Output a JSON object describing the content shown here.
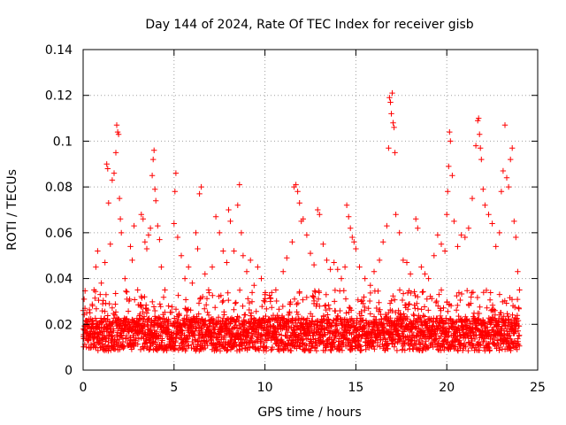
{
  "chart_data": {
    "type": "scatter",
    "title": "Day 144 of 2024, Rate Of TEC Index for receiver gisb",
    "xlabel": "GPS time / hours",
    "ylabel": "ROTI / TECUs",
    "xlim": [
      0,
      25
    ],
    "ylim": [
      0,
      0.14
    ],
    "xticks": [
      0,
      5,
      10,
      15,
      20,
      25
    ],
    "yticks": [
      0,
      0.02,
      0.04,
      0.06,
      0.08,
      0.1,
      0.12,
      0.14
    ],
    "xtick_labels": [
      "0",
      "5",
      "10",
      "15",
      "20",
      "25"
    ],
    "ytick_labels": [
      "0",
      "0.02",
      "0.04",
      "0.06",
      "0.08",
      "0.1",
      "0.12",
      "0.14"
    ],
    "grid": true,
    "marker": "+",
    "color": "#ff0000",
    "series": [
      {
        "name": "ROTI",
        "points": [
          [
            0.0,
            0.026
          ],
          [
            0.1,
            0.027
          ],
          [
            0.2,
            0.025
          ],
          [
            0.3,
            0.013
          ],
          [
            0.5,
            0.016
          ],
          [
            0.6,
            0.035
          ],
          [
            0.7,
            0.045
          ],
          [
            0.8,
            0.052
          ],
          [
            1.0,
            0.038
          ],
          [
            1.2,
            0.047
          ],
          [
            1.3,
            0.09
          ],
          [
            1.35,
            0.088
          ],
          [
            1.4,
            0.073
          ],
          [
            1.5,
            0.055
          ],
          [
            1.6,
            0.083
          ],
          [
            1.7,
            0.086
          ],
          [
            1.8,
            0.095
          ],
          [
            1.85,
            0.107
          ],
          [
            1.9,
            0.104
          ],
          [
            1.95,
            0.103
          ],
          [
            2.0,
            0.075
          ],
          [
            2.05,
            0.066
          ],
          [
            2.1,
            0.06
          ],
          [
            2.3,
            0.04
          ],
          [
            2.6,
            0.054
          ],
          [
            2.7,
            0.048
          ],
          [
            2.8,
            0.063
          ],
          [
            3.0,
            0.035
          ],
          [
            3.2,
            0.068
          ],
          [
            3.3,
            0.066
          ],
          [
            3.4,
            0.056
          ],
          [
            3.5,
            0.053
          ],
          [
            3.6,
            0.059
          ],
          [
            3.7,
            0.062
          ],
          [
            3.8,
            0.085
          ],
          [
            3.85,
            0.092
          ],
          [
            3.9,
            0.096
          ],
          [
            3.95,
            0.079
          ],
          [
            4.0,
            0.074
          ],
          [
            4.1,
            0.063
          ],
          [
            4.2,
            0.057
          ],
          [
            4.3,
            0.045
          ],
          [
            4.5,
            0.035
          ],
          [
            4.7,
            0.028
          ],
          [
            5.0,
            0.064
          ],
          [
            5.05,
            0.078
          ],
          [
            5.1,
            0.086
          ],
          [
            5.2,
            0.058
          ],
          [
            5.4,
            0.05
          ],
          [
            5.6,
            0.04
          ],
          [
            5.8,
            0.045
          ],
          [
            6.0,
            0.038
          ],
          [
            6.2,
            0.06
          ],
          [
            6.3,
            0.053
          ],
          [
            6.4,
            0.077
          ],
          [
            6.5,
            0.08
          ],
          [
            6.7,
            0.042
          ],
          [
            6.9,
            0.035
          ],
          [
            7.1,
            0.045
          ],
          [
            7.3,
            0.067
          ],
          [
            7.5,
            0.06
          ],
          [
            7.7,
            0.052
          ],
          [
            7.9,
            0.047
          ],
          [
            8.0,
            0.07
          ],
          [
            8.1,
            0.065
          ],
          [
            8.3,
            0.052
          ],
          [
            8.5,
            0.072
          ],
          [
            8.6,
            0.081
          ],
          [
            8.7,
            0.06
          ],
          [
            8.8,
            0.05
          ],
          [
            9.0,
            0.043
          ],
          [
            9.2,
            0.048
          ],
          [
            9.4,
            0.037
          ],
          [
            9.6,
            0.045
          ],
          [
            9.8,
            0.04
          ],
          [
            10.0,
            0.033
          ],
          [
            10.3,
            0.03
          ],
          [
            10.6,
            0.035
          ],
          [
            11.0,
            0.043
          ],
          [
            11.2,
            0.049
          ],
          [
            11.5,
            0.056
          ],
          [
            11.6,
            0.08
          ],
          [
            11.7,
            0.081
          ],
          [
            11.8,
            0.078
          ],
          [
            11.9,
            0.073
          ],
          [
            12.0,
            0.065
          ],
          [
            12.1,
            0.066
          ],
          [
            12.3,
            0.059
          ],
          [
            12.5,
            0.051
          ],
          [
            12.7,
            0.046
          ],
          [
            12.9,
            0.07
          ],
          [
            13.0,
            0.068
          ],
          [
            13.2,
            0.055
          ],
          [
            13.4,
            0.048
          ],
          [
            13.6,
            0.044
          ],
          [
            13.8,
            0.047
          ],
          [
            14.0,
            0.044
          ],
          [
            14.2,
            0.04
          ],
          [
            14.4,
            0.045
          ],
          [
            14.5,
            0.072
          ],
          [
            14.6,
            0.067
          ],
          [
            14.7,
            0.062
          ],
          [
            14.8,
            0.058
          ],
          [
            14.9,
            0.056
          ],
          [
            15.0,
            0.053
          ],
          [
            15.2,
            0.045
          ],
          [
            15.5,
            0.04
          ],
          [
            15.8,
            0.037
          ],
          [
            16.0,
            0.043
          ],
          [
            16.3,
            0.048
          ],
          [
            16.5,
            0.056
          ],
          [
            16.7,
            0.063
          ],
          [
            16.8,
            0.097
          ],
          [
            16.85,
            0.119
          ],
          [
            16.9,
            0.117
          ],
          [
            16.95,
            0.112
          ],
          [
            17.0,
            0.121
          ],
          [
            17.05,
            0.108
          ],
          [
            17.1,
            0.106
          ],
          [
            17.15,
            0.095
          ],
          [
            17.2,
            0.068
          ],
          [
            17.4,
            0.06
          ],
          [
            17.6,
            0.048
          ],
          [
            17.8,
            0.047
          ],
          [
            18.0,
            0.042
          ],
          [
            18.3,
            0.066
          ],
          [
            18.4,
            0.062
          ],
          [
            18.6,
            0.045
          ],
          [
            18.8,
            0.042
          ],
          [
            19.0,
            0.04
          ],
          [
            19.3,
            0.05
          ],
          [
            19.5,
            0.059
          ],
          [
            19.7,
            0.055
          ],
          [
            19.9,
            0.052
          ],
          [
            20.0,
            0.068
          ],
          [
            20.05,
            0.078
          ],
          [
            20.1,
            0.089
          ],
          [
            20.15,
            0.104
          ],
          [
            20.2,
            0.1
          ],
          [
            20.3,
            0.085
          ],
          [
            20.4,
            0.065
          ],
          [
            20.6,
            0.054
          ],
          [
            20.8,
            0.059
          ],
          [
            21.0,
            0.058
          ],
          [
            21.2,
            0.062
          ],
          [
            21.4,
            0.075
          ],
          [
            21.6,
            0.098
          ],
          [
            21.7,
            0.109
          ],
          [
            21.75,
            0.11
          ],
          [
            21.8,
            0.103
          ],
          [
            21.85,
            0.097
          ],
          [
            21.9,
            0.092
          ],
          [
            22.0,
            0.079
          ],
          [
            22.1,
            0.072
          ],
          [
            22.3,
            0.068
          ],
          [
            22.5,
            0.064
          ],
          [
            22.7,
            0.054
          ],
          [
            22.9,
            0.06
          ],
          [
            23.0,
            0.078
          ],
          [
            23.1,
            0.087
          ],
          [
            23.2,
            0.107
          ],
          [
            23.3,
            0.084
          ],
          [
            23.4,
            0.08
          ],
          [
            23.5,
            0.092
          ],
          [
            23.6,
            0.097
          ],
          [
            23.7,
            0.065
          ],
          [
            23.8,
            0.058
          ],
          [
            23.9,
            0.043
          ],
          [
            24.0,
            0.035
          ]
        ],
        "dense_band": {
          "x_range": [
            0,
            24
          ],
          "typical_range": [
            0.004,
            0.035
          ],
          "median": 0.015,
          "samples_per_hour": 120
        }
      }
    ]
  }
}
